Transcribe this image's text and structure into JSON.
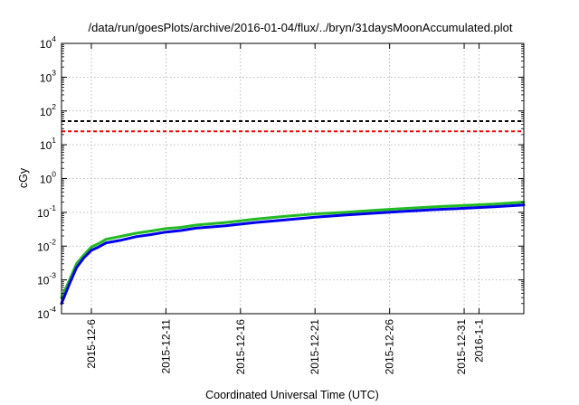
{
  "chart_data": {
    "type": "line",
    "title": "/data/run/goesPlots/archive/2016-01-04/flux/../bryn/31daysMoonAccumulated.plot",
    "xlabel": "Coordinated Universal Time (UTC)",
    "ylabel": "cGy",
    "yscale": "log",
    "ylim": [
      0.0001,
      10000
    ],
    "xlim": [
      "2015-12-04",
      "2016-01-04"
    ],
    "grid": true,
    "y_ticks": [
      {
        "base": "10",
        "exp": "-4"
      },
      {
        "base": "10",
        "exp": "-3"
      },
      {
        "base": "10",
        "exp": "-2"
      },
      {
        "base": "10",
        "exp": "-1"
      },
      {
        "base": "10",
        "exp": "0"
      },
      {
        "base": "10",
        "exp": "1"
      },
      {
        "base": "10",
        "exp": "2"
      },
      {
        "base": "10",
        "exp": "3"
      },
      {
        "base": "10",
        "exp": "4"
      }
    ],
    "x_ticks": [
      "2015-12-6",
      "2015-12-11",
      "2015-12-16",
      "2015-12-21",
      "2015-12-26",
      "2015-12-31",
      "2016-1-1"
    ],
    "thresholds": [
      {
        "value": 50,
        "color": "#000000",
        "style": "dashed"
      },
      {
        "value": 25,
        "color": "#ff0000",
        "style": "dashed"
      }
    ],
    "series": [
      {
        "color": "#22bb22",
        "x": [
          "2015-12-04",
          "2015-12-04T12:00",
          "2015-12-05",
          "2015-12-05T12:00",
          "2015-12-06",
          "2015-12-06T12:00",
          "2015-12-07",
          "2015-12-08",
          "2015-12-09",
          "2015-12-10",
          "2015-12-11",
          "2015-12-12",
          "2015-12-13",
          "2015-12-15",
          "2015-12-17",
          "2015-12-19",
          "2015-12-21",
          "2015-12-23",
          "2015-12-25",
          "2015-12-27",
          "2015-12-29",
          "2015-12-31",
          "2016-01-02",
          "2016-01-04"
        ],
        "y": [
          0.0003,
          0.0009,
          0.003,
          0.0055,
          0.0095,
          0.012,
          0.016,
          0.0195,
          0.024,
          0.028,
          0.033,
          0.036,
          0.042,
          0.05,
          0.063,
          0.076,
          0.09,
          0.1,
          0.115,
          0.13,
          0.145,
          0.16,
          0.175,
          0.2
        ]
      },
      {
        "color": "#0000ee",
        "x": [
          "2015-12-04",
          "2015-12-04T12:00",
          "2015-12-05",
          "2015-12-05T12:00",
          "2015-12-06",
          "2015-12-06T12:00",
          "2015-12-07",
          "2015-12-08",
          "2015-12-09",
          "2015-12-10",
          "2015-12-11",
          "2015-12-12",
          "2015-12-13",
          "2015-12-15",
          "2015-12-17",
          "2015-12-19",
          "2015-12-21",
          "2015-12-23",
          "2015-12-25",
          "2015-12-27",
          "2015-12-29",
          "2015-12-31",
          "2016-01-02",
          "2016-01-04"
        ],
        "y": [
          0.0002,
          0.0007,
          0.0023,
          0.0045,
          0.0075,
          0.0095,
          0.0125,
          0.015,
          0.019,
          0.022,
          0.026,
          0.029,
          0.034,
          0.04,
          0.05,
          0.06,
          0.072,
          0.083,
          0.095,
          0.107,
          0.12,
          0.132,
          0.145,
          0.165
        ]
      }
    ]
  }
}
